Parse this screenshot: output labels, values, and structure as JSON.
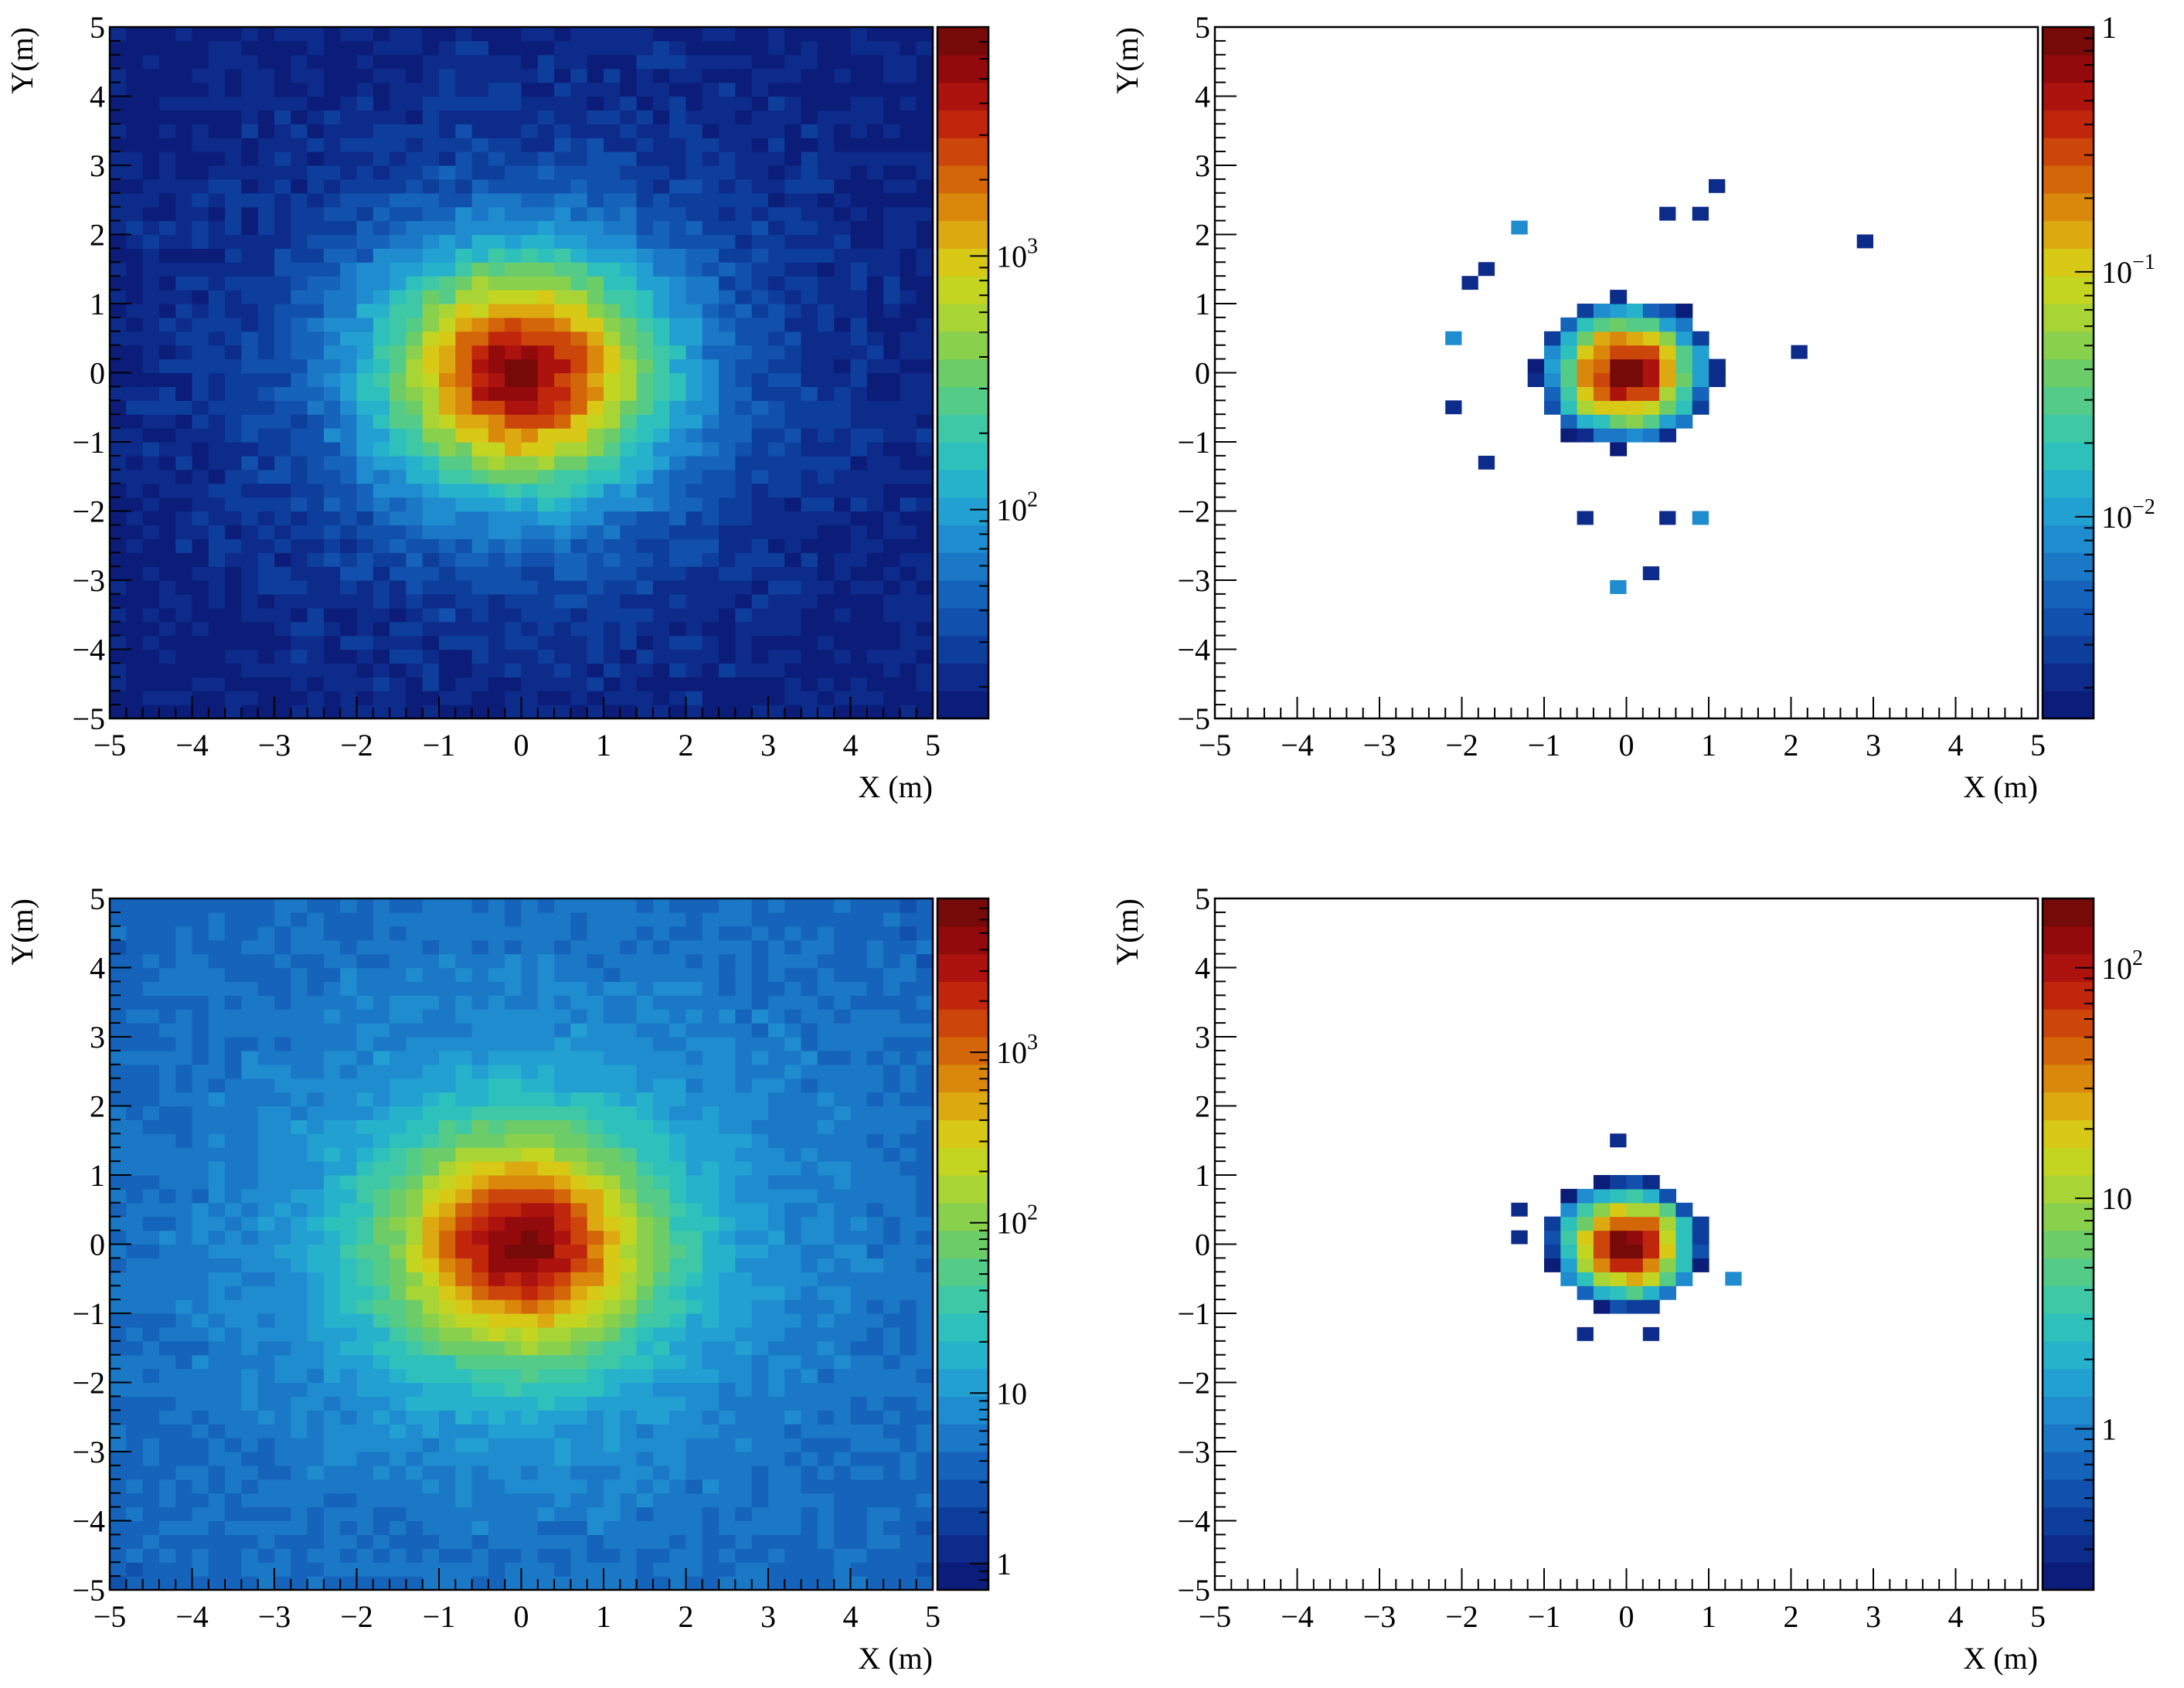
{
  "chart_data": [
    {
      "type": "heatmap",
      "title": "",
      "xlabel": "X (m)",
      "ylabel": "Y(m)",
      "xlim": [
        -5,
        5
      ],
      "ylim": [
        -5,
        5
      ],
      "xticks": [
        "−5",
        "−4",
        "−3",
        "−2",
        "−1",
        "0",
        "1",
        "2",
        "3",
        "4",
        "5"
      ],
      "yticks": [
        "−5",
        "−4",
        "−3",
        "−2",
        "−1",
        "0",
        "1",
        "2",
        "3",
        "4",
        "5"
      ],
      "bins": [
        50,
        50
      ],
      "z_scale": "log",
      "zlim": [
        15,
        8000
      ],
      "colorbar_ticks": [
        {
          "value": 1000,
          "label": "10",
          "exp": "3"
        },
        {
          "value": 100,
          "label": "10",
          "exp": "2"
        }
      ],
      "distribution": {
        "shape": "radial",
        "center": [
          0,
          0
        ],
        "peak": 8000,
        "core_width_m": 1.2,
        "halo_scale_m": 2.3,
        "edge_value": 15,
        "support_radius_m": null
      },
      "grid": false
    },
    {
      "type": "heatmap",
      "title": "",
      "xlabel": "X (m)",
      "ylabel": "Y(m)",
      "xlim": [
        -5,
        5
      ],
      "ylim": [
        -5,
        5
      ],
      "xticks": [
        "−5",
        "−4",
        "−3",
        "−2",
        "−1",
        "0",
        "1",
        "2",
        "3",
        "4",
        "5"
      ],
      "yticks": [
        "−5",
        "−4",
        "−3",
        "−2",
        "−1",
        "0",
        "1",
        "2",
        "3",
        "4",
        "5"
      ],
      "bins": [
        50,
        50
      ],
      "z_scale": "log",
      "zlim": [
        0.0015,
        1
      ],
      "colorbar_ticks": [
        {
          "value": 1,
          "label": "1",
          "exp": ""
        },
        {
          "value": 0.1,
          "label": "10",
          "exp": "−1"
        },
        {
          "value": 0.01,
          "label": "10",
          "exp": "−2"
        }
      ],
      "distribution": {
        "shape": "radial",
        "center": [
          0,
          0
        ],
        "peak": 1,
        "core_width_m": 0.55,
        "halo_scale_m": 0.35,
        "edge_value": 0.0015,
        "support_radius_m": 2.0
      },
      "outlier_bins": [
        [
          1.1,
          2.7
        ],
        [
          0.5,
          2.3
        ],
        [
          0.9,
          2.3
        ],
        [
          -1.4,
          2.1
        ],
        [
          2.9,
          1.9
        ],
        [
          -1.7,
          1.5
        ],
        [
          -1.9,
          1.3
        ],
        [
          -2.1,
          0.5
        ],
        [
          2.1,
          0.3
        ],
        [
          -2.1,
          -0.5
        ],
        [
          -1.7,
          -1.3
        ],
        [
          -0.1,
          -3.1
        ],
        [
          0.3,
          -2.9
        ],
        [
          -0.5,
          -2.1
        ],
        [
          0.5,
          -2.1
        ],
        [
          0.9,
          -2.1
        ]
      ],
      "grid": false
    },
    {
      "type": "heatmap",
      "title": "",
      "xlabel": "X (m)",
      "ylabel": "Y(m)",
      "xlim": [
        -5,
        5
      ],
      "ylim": [
        -5,
        5
      ],
      "xticks": [
        "−5",
        "−4",
        "−3",
        "−2",
        "−1",
        "0",
        "1",
        "2",
        "3",
        "4",
        "5"
      ],
      "yticks": [
        "−5",
        "−4",
        "−3",
        "−2",
        "−1",
        "0",
        "1",
        "2",
        "3",
        "4",
        "5"
      ],
      "bins": [
        50,
        50
      ],
      "z_scale": "log",
      "zlim": [
        0.7,
        8000
      ],
      "colorbar_ticks": [
        {
          "value": 1000,
          "label": "10",
          "exp": "3"
        },
        {
          "value": 100,
          "label": "10",
          "exp": "2"
        },
        {
          "value": 10,
          "label": "10",
          "exp": ""
        },
        {
          "value": 1,
          "label": "1",
          "exp": ""
        }
      ],
      "distribution": {
        "shape": "radial",
        "center": [
          0,
          0
        ],
        "peak": 8000,
        "core_width_m": 1.1,
        "halo_scale_m": 2.6,
        "edge_value": 3,
        "support_radius_m": null
      },
      "grid": false
    },
    {
      "type": "heatmap",
      "title": "",
      "xlabel": "X (m)",
      "ylabel": "Y(m)",
      "xlim": [
        -5,
        5
      ],
      "ylim": [
        -5,
        5
      ],
      "xticks": [
        "−5",
        "−4",
        "−3",
        "−2",
        "−1",
        "0",
        "1",
        "2",
        "3",
        "4",
        "5"
      ],
      "yticks": [
        "−5",
        "−4",
        "−3",
        "−2",
        "−1",
        "0",
        "1",
        "2",
        "3",
        "4",
        "5"
      ],
      "bins": [
        50,
        50
      ],
      "z_scale": "log",
      "zlim": [
        0.2,
        200
      ],
      "colorbar_ticks": [
        {
          "value": 100,
          "label": "10",
          "exp": "2"
        },
        {
          "value": 10,
          "label": "10",
          "exp": ""
        },
        {
          "value": 1,
          "label": "1",
          "exp": ""
        }
      ],
      "distribution": {
        "shape": "radial",
        "center": [
          0,
          0
        ],
        "peak": 200,
        "core_width_m": 0.45,
        "halo_scale_m": 0.25,
        "edge_value": 0.2,
        "support_radius_m": 1.4
      },
      "outlier_bins": [
        [
          -0.1,
          1.5
        ],
        [
          -1.3,
          0.5
        ],
        [
          -1.3,
          0.1
        ],
        [
          1.3,
          -0.5
        ],
        [
          -0.5,
          -1.3
        ],
        [
          0.3,
          -1.3
        ]
      ],
      "grid": false
    }
  ],
  "palette": [
    "#0b1d78",
    "#0c2b8a",
    "#0e3e9c",
    "#1150ac",
    "#1563ba",
    "#1a78c6",
    "#1e8ccf",
    "#22a0d2",
    "#27b2cc",
    "#2ec1bc",
    "#3ec8a6",
    "#54cc88",
    "#6ccd68",
    "#89d04c",
    "#a8d436",
    "#c4d521",
    "#d7c916",
    "#dcaa10",
    "#d9880c",
    "#d4660a",
    "#cc450a",
    "#c0260c",
    "#ac120e",
    "#920a0c",
    "#760a09"
  ]
}
